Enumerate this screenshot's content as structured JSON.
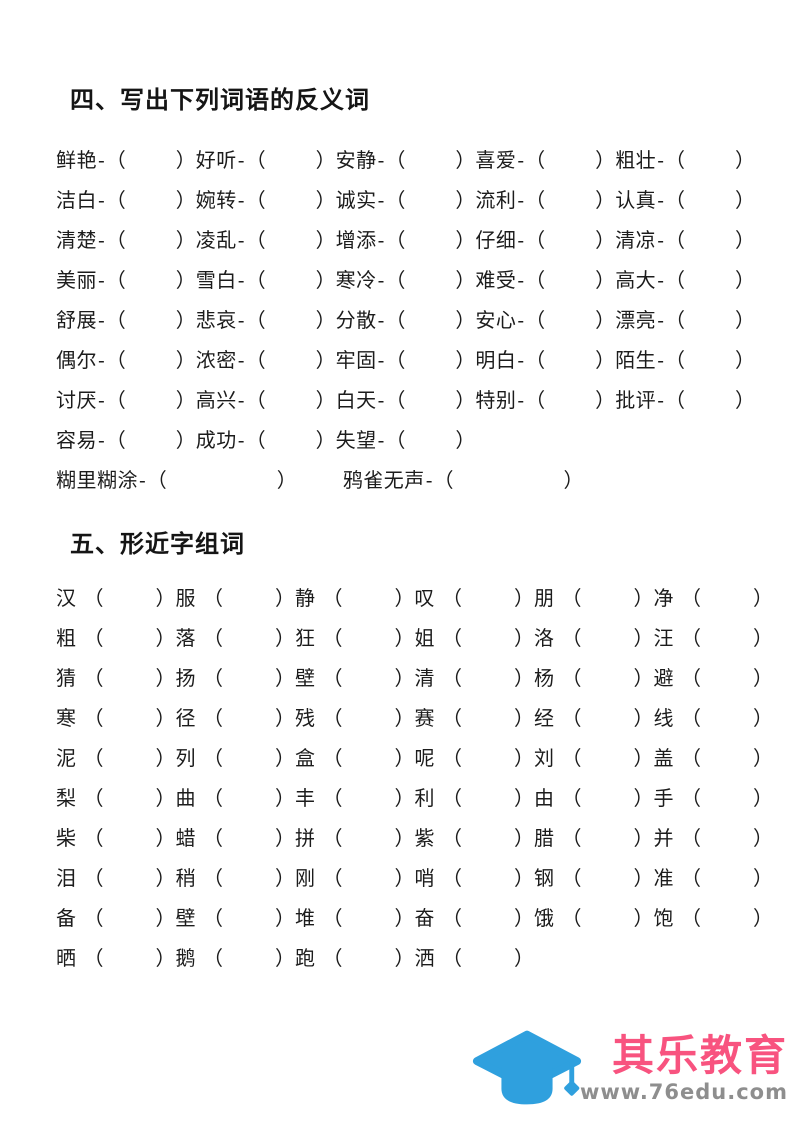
{
  "punct": {
    "dash": "-",
    "open": "（",
    "close": "）"
  },
  "section_antonyms": {
    "title": "四、写出下列词语的反义词",
    "rows": [
      [
        "鲜艳",
        "好听",
        "安静",
        "喜爱",
        "粗壮"
      ],
      [
        "洁白",
        "婉转",
        "诚实",
        "流利",
        "认真"
      ],
      [
        "清楚",
        "凌乱",
        "增添",
        "仔细",
        "清凉"
      ],
      [
        "美丽",
        "雪白",
        "寒冷",
        "难受",
        "高大"
      ],
      [
        "舒展",
        "悲哀",
        "分散",
        "安心",
        "漂亮"
      ],
      [
        "偶尔",
        "浓密",
        "牢固",
        "明白",
        "陌生"
      ],
      [
        "讨厌",
        "高兴",
        "白天",
        "特别",
        "批评"
      ],
      [
        "容易",
        "成功",
        "失望"
      ]
    ],
    "wide_rows": [
      [
        "糊里糊涂",
        "鸦雀无声"
      ]
    ]
  },
  "section_similar": {
    "title": "五、形近字组词",
    "rows": [
      [
        "汉",
        "服",
        "静",
        "叹",
        "朋",
        "净"
      ],
      [
        "粗",
        "落",
        "狂",
        "姐",
        "洛",
        "汪"
      ],
      [
        "猜",
        "扬",
        "壁",
        "清",
        "杨",
        "避"
      ],
      [
        "寒",
        "径",
        "残",
        "赛",
        "经",
        "线"
      ],
      [
        "泥",
        "列",
        "盒",
        "呢",
        "刘",
        "盖"
      ],
      [
        "梨",
        "曲",
        "丰",
        "利",
        "由",
        "手"
      ],
      [
        "柴",
        "蜡",
        "拼",
        "紫",
        "腊",
        "并"
      ],
      [
        "泪",
        "稍",
        "刚",
        "哨",
        "钢",
        "准"
      ],
      [
        "备",
        "壁",
        "堆",
        "奋",
        "饿",
        "饱"
      ],
      [
        "晒",
        "鹅",
        "跑",
        "洒"
      ]
    ]
  },
  "logo": {
    "cap_icon": "graduation-cap",
    "brand": "其乐教育",
    "url": "www.76edu.com",
    "cap_color": "#2FA0DE",
    "brand_color": "#F8537F",
    "url_color": "#8E8E8E"
  }
}
